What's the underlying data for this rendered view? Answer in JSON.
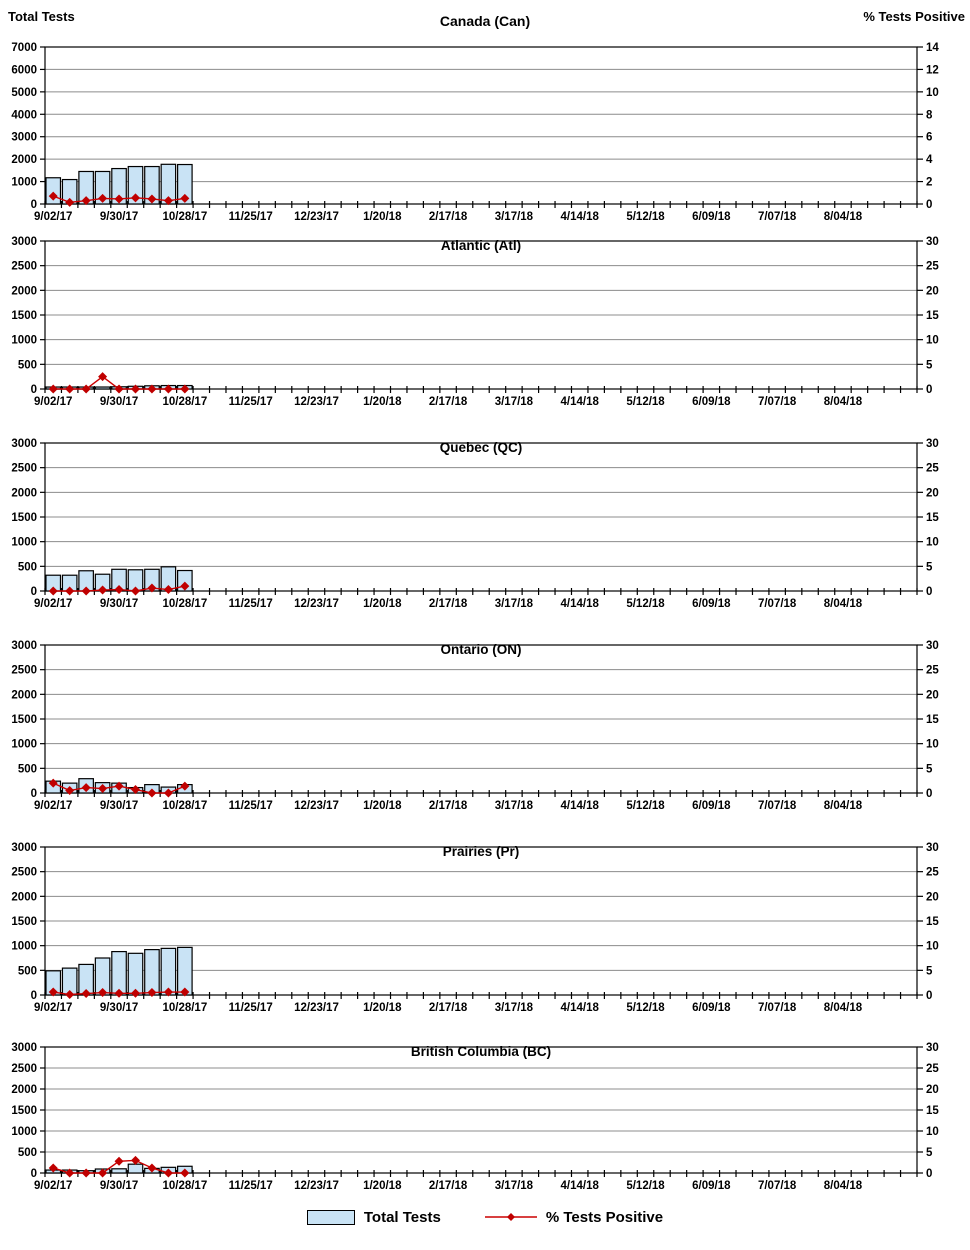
{
  "page": {
    "left_axis_title": "Total Tests",
    "right_axis_title": "% Tests Positive",
    "legend": {
      "bars_label": "Total Tests",
      "line_label": "% Tests Positive"
    },
    "colors": {
      "bar_fill": "#C9E3F5",
      "bar_border": "#000000",
      "line": "#CC0000",
      "marker": "#C00000",
      "grid": "#8C8C8C",
      "frame": "#000000"
    }
  },
  "x_axis": {
    "categories_total": 53,
    "label_every": 4,
    "tick_labels": [
      "9/02/17",
      "9/30/17",
      "10/28/17",
      "11/25/17",
      "12/23/17",
      "1/20/18",
      "2/17/18",
      "3/17/18",
      "4/14/18",
      "5/12/18",
      "6/09/18",
      "7/07/18",
      "8/04/18"
    ]
  },
  "chart_data": [
    {
      "type": "bar+line",
      "title": "Canada (Can)",
      "left_axis": {
        "label": "Total Tests",
        "min": 0,
        "max": 7000,
        "step": 1000
      },
      "right_axis": {
        "label": "% Tests Positive",
        "min": 0,
        "max": 14,
        "step": 2
      },
      "x": [
        "9/02/17",
        "9/09/17",
        "9/16/17",
        "9/23/17",
        "9/30/17",
        "10/07/17",
        "10/14/17",
        "10/21/17",
        "10/28/17"
      ],
      "series": [
        {
          "name": "Total Tests",
          "axis": "left",
          "values": [
            1170,
            1090,
            1450,
            1450,
            1580,
            1670,
            1670,
            1770,
            1760
          ]
        },
        {
          "name": "% Tests Positive",
          "axis": "right",
          "values": [
            0.7,
            0.15,
            0.3,
            0.5,
            0.45,
            0.55,
            0.45,
            0.3,
            0.5
          ]
        }
      ]
    },
    {
      "type": "bar+line",
      "title": "Atlantic (Atl)",
      "left_axis": {
        "label": "Total Tests",
        "min": 0,
        "max": 3000,
        "step": 500
      },
      "right_axis": {
        "label": "% Tests Positive",
        "min": 0,
        "max": 30,
        "step": 5
      },
      "x": [
        "9/02/17",
        "9/09/17",
        "9/16/17",
        "9/23/17",
        "9/30/17",
        "10/07/17",
        "10/14/17",
        "10/21/17",
        "10/28/17"
      ],
      "series": [
        {
          "name": "Total Tests",
          "axis": "left",
          "values": [
            40,
            40,
            40,
            40,
            45,
            55,
            65,
            70,
            70
          ]
        },
        {
          "name": "% Tests Positive",
          "axis": "right",
          "values": [
            0,
            0,
            0,
            2.5,
            0,
            0,
            0,
            0,
            0
          ]
        }
      ]
    },
    {
      "type": "bar+line",
      "title": "Quebec (QC)",
      "left_axis": {
        "label": "Total Tests",
        "min": 0,
        "max": 3000,
        "step": 500
      },
      "right_axis": {
        "label": "% Tests Positive",
        "min": 0,
        "max": 30,
        "step": 5
      },
      "x": [
        "9/02/17",
        "9/09/17",
        "9/16/17",
        "9/23/17",
        "9/30/17",
        "10/07/17",
        "10/14/17",
        "10/21/17",
        "10/28/17"
      ],
      "series": [
        {
          "name": "Total Tests",
          "axis": "left",
          "values": [
            320,
            320,
            410,
            340,
            440,
            430,
            440,
            490,
            415
          ]
        },
        {
          "name": "% Tests Positive",
          "axis": "right",
          "values": [
            0,
            0,
            0,
            0.2,
            0.3,
            0,
            0.6,
            0.3,
            1.0
          ]
        }
      ]
    },
    {
      "type": "bar+line",
      "title": "Ontario (ON)",
      "left_axis": {
        "label": "Total Tests",
        "min": 0,
        "max": 3000,
        "step": 500
      },
      "right_axis": {
        "label": "% Tests Positive",
        "min": 0,
        "max": 30,
        "step": 5
      },
      "x": [
        "9/02/17",
        "9/09/17",
        "9/16/17",
        "9/23/17",
        "9/30/17",
        "10/07/17",
        "10/14/17",
        "10/21/17",
        "10/28/17"
      ],
      "series": [
        {
          "name": "Total Tests",
          "axis": "left",
          "values": [
            240,
            200,
            290,
            210,
            200,
            110,
            170,
            120,
            170
          ]
        },
        {
          "name": "% Tests Positive",
          "axis": "right",
          "values": [
            2.0,
            0.5,
            1.1,
            0.9,
            1.4,
            0.7,
            0,
            0,
            1.4
          ]
        }
      ]
    },
    {
      "type": "bar+line",
      "title": "Prairies (Pr)",
      "left_axis": {
        "label": "Total Tests",
        "min": 0,
        "max": 3000,
        "step": 500
      },
      "right_axis": {
        "label": "% Tests Positive",
        "min": 0,
        "max": 30,
        "step": 5
      },
      "x": [
        "9/02/17",
        "9/09/17",
        "9/16/17",
        "9/23/17",
        "9/30/17",
        "10/07/17",
        "10/14/17",
        "10/21/17",
        "10/28/17"
      ],
      "series": [
        {
          "name": "Total Tests",
          "axis": "left",
          "values": [
            490,
            545,
            620,
            750,
            880,
            845,
            920,
            945,
            965
          ]
        },
        {
          "name": "% Tests Positive",
          "axis": "right",
          "values": [
            0.6,
            0.1,
            0.3,
            0.5,
            0.35,
            0.35,
            0.5,
            0.6,
            0.6
          ]
        }
      ]
    },
    {
      "type": "bar+line",
      "title": "British Columbia (BC)",
      "left_axis": {
        "label": "Total Tests",
        "min": 0,
        "max": 3000,
        "step": 500
      },
      "right_axis": {
        "label": "% Tests Positive",
        "min": 0,
        "max": 30,
        "step": 5
      },
      "x": [
        "9/02/17",
        "9/09/17",
        "9/16/17",
        "9/23/17",
        "9/30/17",
        "10/07/17",
        "10/14/17",
        "10/21/17",
        "10/28/17"
      ],
      "series": [
        {
          "name": "Total Tests",
          "axis": "left",
          "values": [
            70,
            70,
            55,
            95,
            100,
            210,
            110,
            135,
            160
          ]
        },
        {
          "name": "% Tests Positive",
          "axis": "right",
          "values": [
            1.2,
            0,
            0,
            0,
            2.8,
            3.0,
            1.2,
            0,
            0
          ]
        }
      ]
    }
  ]
}
